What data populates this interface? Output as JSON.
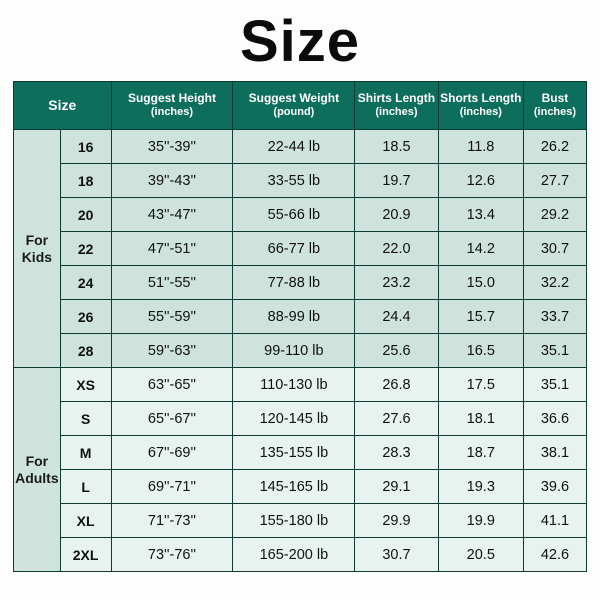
{
  "title": "Size",
  "title_fontsize": 58,
  "title_color": "#0b0b0b",
  "colors": {
    "header_bg": "#0e6e5c",
    "header_text": "#ffffff",
    "border": "#0d3a32",
    "kids_bg": "#cde3dc",
    "adults_bg": "#e8f2ee",
    "page_bg": "#fdfdfd"
  },
  "columns": [
    {
      "label": "Size",
      "unit": ""
    },
    {
      "label": "Suggest Height",
      "unit": "(inches)"
    },
    {
      "label": "Suggest Weight",
      "unit": "(pound)"
    },
    {
      "label": "Shirts Length",
      "unit": "(inches)"
    },
    {
      "label": "Shorts Length",
      "unit": "(inches)"
    },
    {
      "label": "Bust",
      "unit": "(inches)"
    }
  ],
  "groups": [
    {
      "label": "For Kids",
      "class": "kids",
      "rows": [
        {
          "size": "16",
          "height": "35''-39''",
          "weight": "22-44 lb",
          "shirts": "18.5",
          "shorts": "11.8",
          "bust": "26.2"
        },
        {
          "size": "18",
          "height": "39''-43''",
          "weight": "33-55 lb",
          "shirts": "19.7",
          "shorts": "12.6",
          "bust": "27.7"
        },
        {
          "size": "20",
          "height": "43''-47''",
          "weight": "55-66 lb",
          "shirts": "20.9",
          "shorts": "13.4",
          "bust": "29.2"
        },
        {
          "size": "22",
          "height": "47''-51''",
          "weight": "66-77 lb",
          "shirts": "22.0",
          "shorts": "14.2",
          "bust": "30.7"
        },
        {
          "size": "24",
          "height": "51''-55''",
          "weight": "77-88 lb",
          "shirts": "23.2",
          "shorts": "15.0",
          "bust": "32.2"
        },
        {
          "size": "26",
          "height": "55''-59''",
          "weight": "88-99 lb",
          "shirts": "24.4",
          "shorts": "15.7",
          "bust": "33.7"
        },
        {
          "size": "28",
          "height": "59''-63''",
          "weight": "99-110 lb",
          "shirts": "25.6",
          "shorts": "16.5",
          "bust": "35.1"
        }
      ]
    },
    {
      "label": "For Adults",
      "class": "adults",
      "rows": [
        {
          "size": "XS",
          "height": "63''-65''",
          "weight": "110-130 lb",
          "shirts": "26.8",
          "shorts": "17.5",
          "bust": "35.1"
        },
        {
          "size": "S",
          "height": "65''-67''",
          "weight": "120-145 lb",
          "shirts": "27.6",
          "shorts": "18.1",
          "bust": "36.6"
        },
        {
          "size": "M",
          "height": "67''-69''",
          "weight": "135-155 lb",
          "shirts": "28.3",
          "shorts": "18.7",
          "bust": "38.1"
        },
        {
          "size": "L",
          "height": "69''-71''",
          "weight": "145-165 lb",
          "shirts": "29.1",
          "shorts": "19.3",
          "bust": "39.6"
        },
        {
          "size": "XL",
          "height": "71''-73''",
          "weight": "155-180 lb",
          "shirts": "29.9",
          "shorts": "19.9",
          "bust": "41.1"
        },
        {
          "size": "2XL",
          "height": "73''-76''",
          "weight": "165-200 lb",
          "shirts": "30.7",
          "shorts": "20.5",
          "bust": "42.6"
        }
      ]
    }
  ]
}
